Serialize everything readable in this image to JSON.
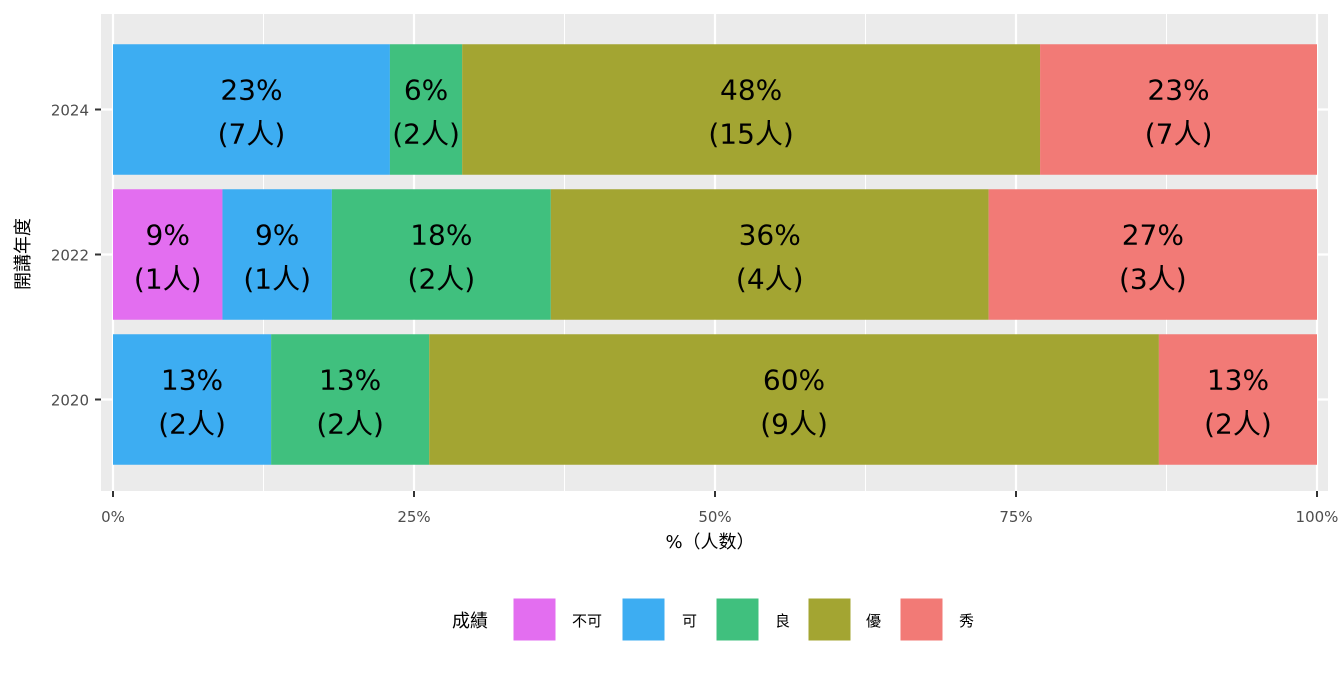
{
  "chart_data": {
    "type": "bar",
    "orientation": "horizontal",
    "stacked": true,
    "normalized": true,
    "title": "",
    "xlabel": "%（人数）",
    "ylabel": "開講年度",
    "xlim": [
      0,
      100
    ],
    "x_ticks": [
      "0%",
      "25%",
      "50%",
      "75%",
      "100%"
    ],
    "categories": [
      "2020",
      "2022",
      "2024"
    ],
    "legend": {
      "title": "成績",
      "position": "bottom",
      "entries": [
        "不可",
        "可",
        "良",
        "優",
        "秀"
      ]
    },
    "grid": true,
    "series": [
      {
        "name": "不可",
        "color": "#E36EF0",
        "values": [
          0,
          9,
          0
        ],
        "counts": [
          0,
          1,
          0
        ],
        "labels": [
          "",
          "9%",
          ""
        ],
        "count_labels": [
          "",
          "(1人)",
          ""
        ]
      },
      {
        "name": "可",
        "color": "#3DADF2",
        "values": [
          13,
          9,
          23
        ],
        "counts": [
          2,
          1,
          7
        ],
        "labels": [
          "13%",
          "9%",
          "23%"
        ],
        "count_labels": [
          "(2人)",
          "(1人)",
          "(7人)"
        ]
      },
      {
        "name": "良",
        "color": "#40C07E",
        "values": [
          13,
          18,
          6
        ],
        "counts": [
          2,
          2,
          2
        ],
        "labels": [
          "13%",
          "18%",
          "6%"
        ],
        "count_labels": [
          "(2人)",
          "(2人)",
          "(2人)"
        ]
      },
      {
        "name": "優",
        "color": "#A3A532",
        "values": [
          60,
          36,
          48
        ],
        "counts": [
          9,
          4,
          15
        ],
        "labels": [
          "60%",
          "36%",
          "48%"
        ],
        "count_labels": [
          "(9人)",
          "(4人)",
          "(15人)"
        ]
      },
      {
        "name": "秀",
        "color": "#F27A76",
        "values": [
          13,
          27,
          23
        ],
        "counts": [
          2,
          3,
          7
        ],
        "labels": [
          "13%",
          "27%",
          "23%"
        ],
        "count_labels": [
          "(2人)",
          "(3人)",
          "(7人)"
        ]
      }
    ]
  }
}
